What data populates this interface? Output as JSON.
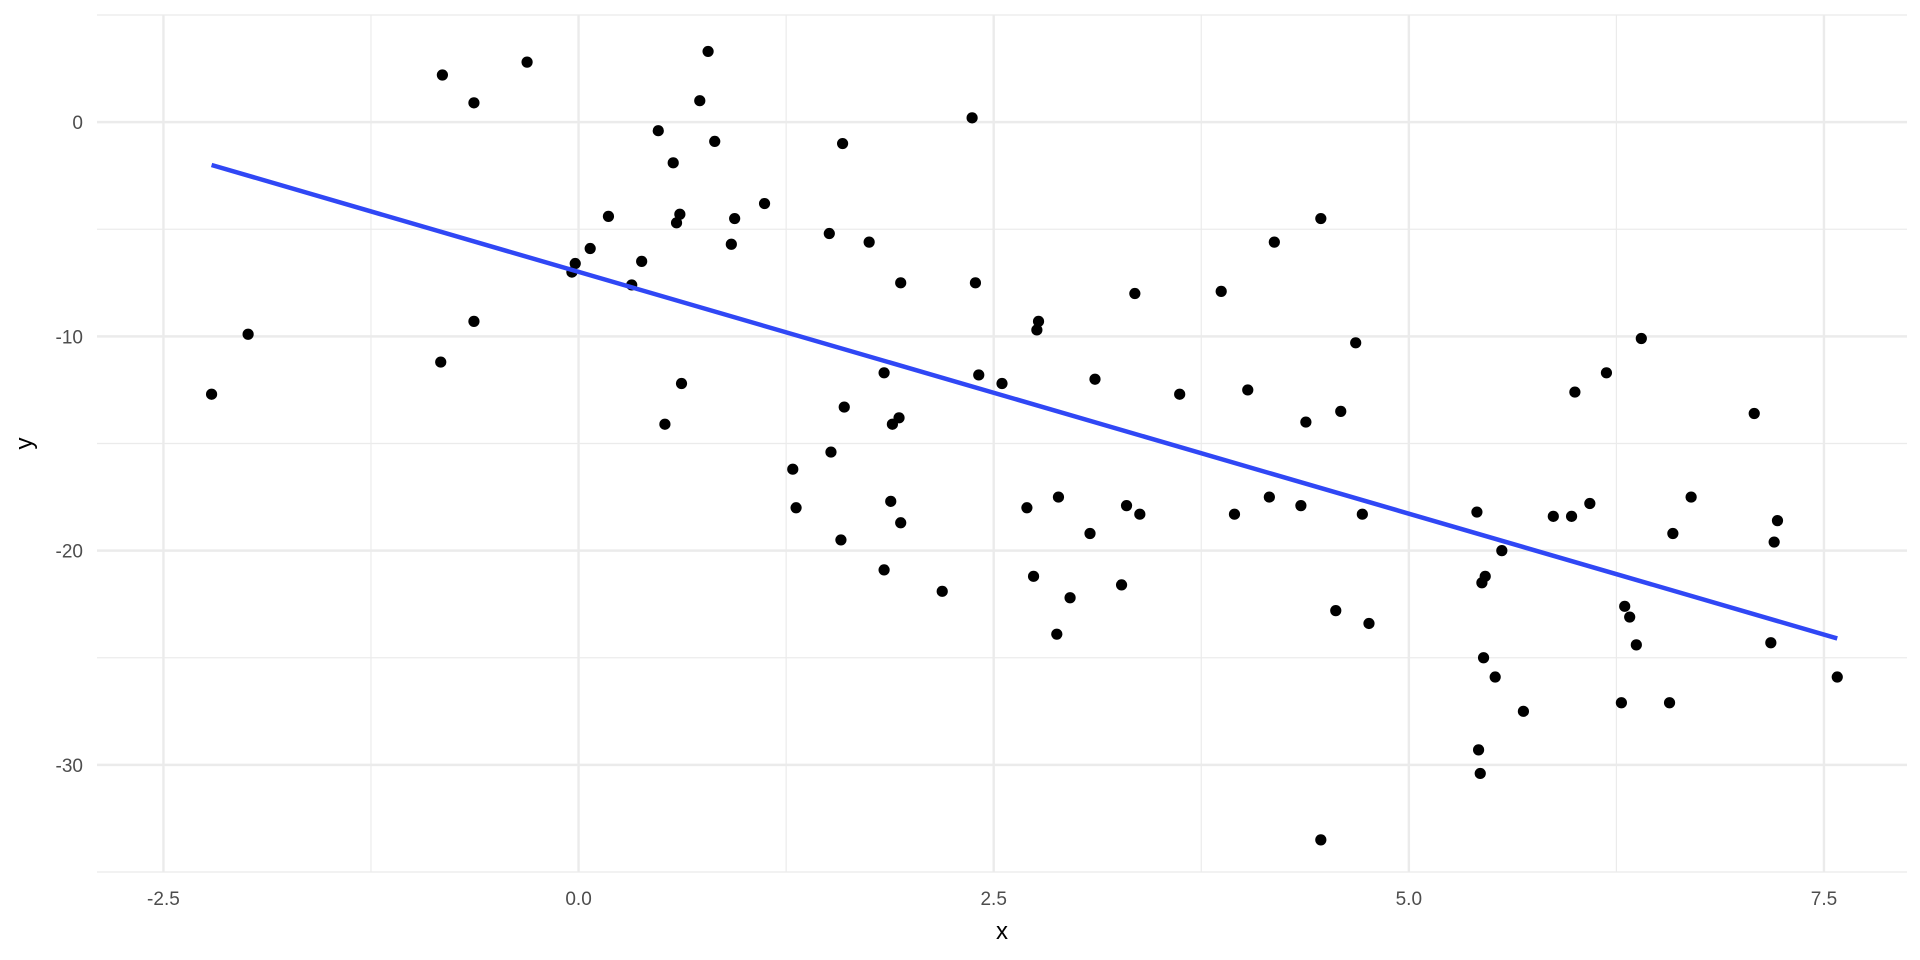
{
  "chart_data": {
    "type": "scatter",
    "xlabel": "x",
    "ylabel": "y",
    "xlim": [
      -2.9,
      8.0
    ],
    "ylim": [
      -35.0,
      5.0
    ],
    "x_ticks": [
      -2.5,
      0.0,
      2.5,
      5.0,
      7.5
    ],
    "x_tick_labels": [
      "-2.5",
      "0.0",
      "2.5",
      "5.0",
      "7.5"
    ],
    "y_ticks": [
      -30,
      -20,
      -10,
      0
    ],
    "y_tick_labels": [
      "-30",
      "-20",
      "-10",
      "0"
    ],
    "grid": true,
    "colors": {
      "points": "#000000",
      "line": "#3047f5",
      "grid": "#ebebeb",
      "background": "#ffffff"
    },
    "series": [
      {
        "kind": "points",
        "points": [
          [
            -2.21,
            -12.7
          ],
          [
            -1.99,
            -9.9
          ],
          [
            -0.82,
            2.2
          ],
          [
            -0.83,
            -11.2
          ],
          [
            -0.63,
            0.9
          ],
          [
            -0.63,
            -9.3
          ],
          [
            -0.31,
            2.8
          ],
          [
            -0.04,
            -7.0
          ],
          [
            -0.02,
            -6.6
          ],
          [
            0.07,
            -5.9
          ],
          [
            0.18,
            -4.4
          ],
          [
            0.32,
            -7.6
          ],
          [
            0.38,
            -6.5
          ],
          [
            0.48,
            -0.4
          ],
          [
            0.52,
            -14.1
          ],
          [
            0.57,
            -1.9
          ],
          [
            0.59,
            -4.7
          ],
          [
            0.61,
            -4.3
          ],
          [
            0.62,
            -12.2
          ],
          [
            0.73,
            1.0
          ],
          [
            0.78,
            3.3
          ],
          [
            0.82,
            -0.9
          ],
          [
            0.92,
            -5.7
          ],
          [
            0.94,
            -4.5
          ],
          [
            1.12,
            -3.8
          ],
          [
            1.29,
            -16.2
          ],
          [
            1.31,
            -18.0
          ],
          [
            1.51,
            -5.2
          ],
          [
            1.52,
            -15.4
          ],
          [
            1.58,
            -19.5
          ],
          [
            1.59,
            -1.0
          ],
          [
            1.6,
            -13.3
          ],
          [
            1.75,
            -5.6
          ],
          [
            1.84,
            -11.7
          ],
          [
            1.84,
            -20.9
          ],
          [
            1.88,
            -17.7
          ],
          [
            1.89,
            -14.1
          ],
          [
            1.93,
            -13.8
          ],
          [
            1.94,
            -18.7
          ],
          [
            1.94,
            -7.5
          ],
          [
            2.19,
            -21.9
          ],
          [
            2.37,
            0.2
          ],
          [
            2.39,
            -7.5
          ],
          [
            2.41,
            -11.8
          ],
          [
            2.55,
            -12.2
          ],
          [
            2.7,
            -18.0
          ],
          [
            2.74,
            -21.2
          ],
          [
            2.76,
            -9.7
          ],
          [
            2.77,
            -9.3
          ],
          [
            2.88,
            -23.9
          ],
          [
            2.89,
            -17.5
          ],
          [
            2.96,
            -22.2
          ],
          [
            3.08,
            -19.2
          ],
          [
            3.11,
            -12.0
          ],
          [
            3.27,
            -21.6
          ],
          [
            3.3,
            -17.9
          ],
          [
            3.35,
            -8.0
          ],
          [
            3.38,
            -18.3
          ],
          [
            3.62,
            -12.7
          ],
          [
            3.87,
            -7.9
          ],
          [
            3.95,
            -18.3
          ],
          [
            4.03,
            -12.5
          ],
          [
            4.16,
            -17.5
          ],
          [
            4.19,
            -5.6
          ],
          [
            4.35,
            -17.9
          ],
          [
            4.38,
            -14.0
          ],
          [
            4.47,
            -4.5
          ],
          [
            4.47,
            -33.5
          ],
          [
            4.56,
            -22.8
          ],
          [
            4.59,
            -13.5
          ],
          [
            4.68,
            -10.3
          ],
          [
            4.72,
            -18.3
          ],
          [
            4.76,
            -23.4
          ],
          [
            5.41,
            -18.2
          ],
          [
            5.42,
            -29.3
          ],
          [
            5.43,
            -30.4
          ],
          [
            5.44,
            -21.5
          ],
          [
            5.45,
            -25.0
          ],
          [
            5.46,
            -21.2
          ],
          [
            5.52,
            -25.9
          ],
          [
            5.56,
            -20.0
          ],
          [
            5.69,
            -27.5
          ],
          [
            5.87,
            -18.4
          ],
          [
            5.98,
            -18.4
          ],
          [
            6.0,
            -12.6
          ],
          [
            6.09,
            -17.8
          ],
          [
            6.19,
            -11.7
          ],
          [
            6.28,
            -27.1
          ],
          [
            6.3,
            -22.6
          ],
          [
            6.33,
            -23.1
          ],
          [
            6.37,
            -24.4
          ],
          [
            6.4,
            -10.1
          ],
          [
            6.57,
            -27.1
          ],
          [
            6.59,
            -19.2
          ],
          [
            6.7,
            -17.5
          ],
          [
            7.08,
            -13.6
          ],
          [
            7.18,
            -24.3
          ],
          [
            7.2,
            -19.6
          ],
          [
            7.22,
            -18.6
          ],
          [
            7.58,
            -25.9
          ]
        ]
      },
      {
        "kind": "regression-line",
        "from": [
          -2.21,
          -2.0
        ],
        "to": [
          7.58,
          -24.1
        ]
      }
    ]
  }
}
